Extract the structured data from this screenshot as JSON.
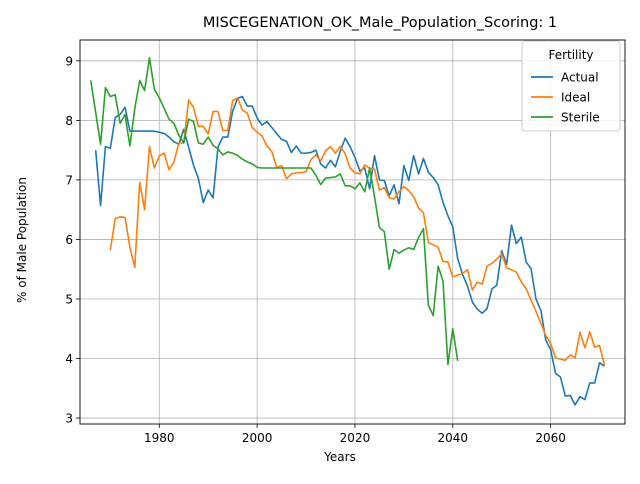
{
  "chart_data": {
    "type": "line",
    "title": "MISCEGENATION_OK_Male_Population_Scoring: 1",
    "xlabel": "Years",
    "ylabel": "% of Male Population",
    "xlim": [
      1963.8,
      2075.2
    ],
    "ylim": [
      2.9,
      9.35
    ],
    "xticks": [
      1980,
      2000,
      2020,
      2040,
      2060
    ],
    "yticks": [
      3,
      4,
      5,
      6,
      7,
      8,
      9
    ],
    "grid": true,
    "legend": {
      "title": "Fertility",
      "placement": "top-right"
    },
    "series": [
      {
        "name": "Actual",
        "color": "#1f77b4",
        "points": [
          [
            1967,
            7.5
          ],
          [
            1968,
            6.57
          ],
          [
            1969,
            7.56
          ],
          [
            1970,
            7.53
          ],
          [
            1971,
            8.05
          ],
          [
            1972,
            8.1
          ],
          [
            1973,
            8.22
          ],
          [
            1974,
            7.82
          ],
          [
            1975,
            7.82
          ],
          [
            1976,
            7.82
          ],
          [
            1977,
            7.82
          ],
          [
            1978,
            7.82
          ],
          [
            1979,
            7.82
          ],
          [
            1980,
            7.8
          ],
          [
            1981,
            7.78
          ],
          [
            1982,
            7.72
          ],
          [
            1983,
            7.64
          ],
          [
            1984,
            7.6
          ],
          [
            1985,
            7.85
          ],
          [
            1986,
            7.55
          ],
          [
            1987,
            7.25
          ],
          [
            1988,
            7.02
          ],
          [
            1989,
            6.62
          ],
          [
            1990,
            6.83
          ],
          [
            1991,
            6.7
          ],
          [
            1992,
            7.55
          ],
          [
            1993,
            7.72
          ],
          [
            1994,
            7.72
          ],
          [
            1995,
            8.15
          ],
          [
            1996,
            8.37
          ],
          [
            1997,
            8.4
          ],
          [
            1998,
            8.24
          ],
          [
            1999,
            8.24
          ],
          [
            2000,
            8.04
          ],
          [
            2001,
            7.92
          ],
          [
            2002,
            7.98
          ],
          [
            2003,
            7.88
          ],
          [
            2004,
            7.78
          ],
          [
            2005,
            7.68
          ],
          [
            2006,
            7.65
          ],
          [
            2007,
            7.46
          ],
          [
            2008,
            7.57
          ],
          [
            2009,
            7.45
          ],
          [
            2010,
            7.45
          ],
          [
            2011,
            7.46
          ],
          [
            2012,
            7.5
          ],
          [
            2013,
            7.27
          ],
          [
            2014,
            7.2
          ],
          [
            2015,
            7.33
          ],
          [
            2016,
            7.22
          ],
          [
            2017,
            7.48
          ],
          [
            2018,
            7.7
          ],
          [
            2019,
            7.56
          ],
          [
            2020,
            7.38
          ],
          [
            2021,
            7.15
          ],
          [
            2022,
            7.2
          ],
          [
            2023,
            6.85
          ],
          [
            2024,
            7.41
          ],
          [
            2025,
            7.0
          ],
          [
            2026,
            6.99
          ],
          [
            2027,
            6.73
          ],
          [
            2028,
            6.92
          ],
          [
            2029,
            6.6
          ],
          [
            2030,
            7.24
          ],
          [
            2031,
            6.99
          ],
          [
            2032,
            7.41
          ],
          [
            2033,
            7.1
          ],
          [
            2034,
            7.36
          ],
          [
            2035,
            7.13
          ],
          [
            2036,
            7.04
          ],
          [
            2037,
            6.92
          ],
          [
            2038,
            6.62
          ],
          [
            2039,
            6.4
          ],
          [
            2040,
            6.21
          ],
          [
            2041,
            5.68
          ],
          [
            2042,
            5.41
          ],
          [
            2043,
            5.22
          ],
          [
            2044,
            4.95
          ],
          [
            2045,
            4.83
          ],
          [
            2046,
            4.76
          ],
          [
            2047,
            4.84
          ],
          [
            2048,
            5.17
          ],
          [
            2049,
            5.23
          ],
          [
            2050,
            5.81
          ],
          [
            2051,
            5.58
          ],
          [
            2052,
            6.24
          ],
          [
            2053,
            5.93
          ],
          [
            2054,
            6.04
          ],
          [
            2055,
            5.62
          ],
          [
            2056,
            5.51
          ],
          [
            2057,
            5.0
          ],
          [
            2058,
            4.81
          ],
          [
            2059,
            4.31
          ],
          [
            2060,
            4.15
          ],
          [
            2061,
            3.75
          ],
          [
            2062,
            3.69
          ],
          [
            2063,
            3.37
          ],
          [
            2064,
            3.38
          ],
          [
            2065,
            3.22
          ],
          [
            2066,
            3.36
          ],
          [
            2067,
            3.31
          ],
          [
            2068,
            3.59
          ],
          [
            2069,
            3.59
          ],
          [
            2070,
            3.93
          ],
          [
            2071,
            3.87
          ]
        ]
      },
      {
        "name": "Ideal",
        "color": "#ff7f0e",
        "points": [
          [
            1970,
            5.82
          ],
          [
            1971,
            6.35
          ],
          [
            1972,
            6.38
          ],
          [
            1973,
            6.37
          ],
          [
            1974,
            5.87
          ],
          [
            1975,
            5.53
          ],
          [
            1976,
            6.96
          ],
          [
            1977,
            6.5
          ],
          [
            1978,
            7.56
          ],
          [
            1979,
            7.2
          ],
          [
            1980,
            7.4
          ],
          [
            1981,
            7.45
          ],
          [
            1982,
            7.17
          ],
          [
            1983,
            7.3
          ],
          [
            1984,
            7.62
          ],
          [
            1985,
            7.62
          ],
          [
            1986,
            8.34
          ],
          [
            1987,
            8.22
          ],
          [
            1988,
            7.9
          ],
          [
            1989,
            7.9
          ],
          [
            1990,
            7.77
          ],
          [
            1991,
            8.15
          ],
          [
            1992,
            8.15
          ],
          [
            1993,
            7.83
          ],
          [
            1994,
            7.83
          ],
          [
            1995,
            8.33
          ],
          [
            1996,
            8.38
          ],
          [
            1997,
            8.17
          ],
          [
            1998,
            8.12
          ],
          [
            1999,
            7.88
          ],
          [
            2000,
            7.8
          ],
          [
            2001,
            7.74
          ],
          [
            2002,
            7.57
          ],
          [
            2003,
            7.48
          ],
          [
            2004,
            7.21
          ],
          [
            2005,
            7.24
          ],
          [
            2006,
            7.02
          ],
          [
            2007,
            7.1
          ],
          [
            2008,
            7.12
          ],
          [
            2009,
            7.12
          ],
          [
            2010,
            7.14
          ],
          [
            2011,
            7.34
          ],
          [
            2012,
            7.42
          ],
          [
            2013,
            7.32
          ],
          [
            2014,
            7.49
          ],
          [
            2015,
            7.56
          ],
          [
            2016,
            7.45
          ],
          [
            2017,
            7.56
          ],
          [
            2018,
            7.44
          ],
          [
            2019,
            7.2
          ],
          [
            2020,
            7.12
          ],
          [
            2021,
            7.1
          ],
          [
            2022,
            7.25
          ],
          [
            2023,
            7.2
          ],
          [
            2024,
            7.18
          ],
          [
            2025,
            6.83
          ],
          [
            2026,
            6.87
          ],
          [
            2027,
            6.7
          ],
          [
            2028,
            6.68
          ],
          [
            2029,
            6.8
          ],
          [
            2030,
            6.89
          ],
          [
            2031,
            6.82
          ],
          [
            2032,
            6.72
          ],
          [
            2033,
            6.53
          ],
          [
            2034,
            6.45
          ],
          [
            2035,
            5.95
          ],
          [
            2036,
            5.91
          ],
          [
            2037,
            5.87
          ],
          [
            2038,
            5.63
          ],
          [
            2039,
            5.62
          ],
          [
            2040,
            5.37
          ],
          [
            2041,
            5.4
          ],
          [
            2042,
            5.43
          ],
          [
            2043,
            5.49
          ],
          [
            2044,
            5.15
          ],
          [
            2045,
            5.28
          ],
          [
            2046,
            5.25
          ],
          [
            2047,
            5.55
          ],
          [
            2048,
            5.6
          ],
          [
            2049,
            5.67
          ],
          [
            2050,
            5.76
          ],
          [
            2051,
            5.52
          ],
          [
            2052,
            5.49
          ],
          [
            2053,
            5.45
          ],
          [
            2054,
            5.29
          ],
          [
            2055,
            5.17
          ],
          [
            2056,
            4.98
          ],
          [
            2057,
            4.79
          ],
          [
            2058,
            4.59
          ],
          [
            2059,
            4.39
          ],
          [
            2060,
            4.25
          ],
          [
            2061,
            4.01
          ],
          [
            2062,
            3.99
          ],
          [
            2063,
            3.97
          ],
          [
            2064,
            4.06
          ],
          [
            2065,
            4.01
          ],
          [
            2066,
            4.44
          ],
          [
            2067,
            4.18
          ],
          [
            2068,
            4.45
          ],
          [
            2069,
            4.19
          ],
          [
            2070,
            4.22
          ],
          [
            2071,
            3.89
          ]
        ]
      },
      {
        "name": "Sterile",
        "color": "#2ca02c",
        "points": [
          [
            1966,
            8.67
          ],
          [
            1968,
            7.6
          ],
          [
            1969,
            8.55
          ],
          [
            1970,
            8.4
          ],
          [
            1971,
            8.43
          ],
          [
            1972,
            7.95
          ],
          [
            1973,
            8.1
          ],
          [
            1974,
            7.57
          ],
          [
            1975,
            8.2
          ],
          [
            1976,
            8.67
          ],
          [
            1977,
            8.5
          ],
          [
            1978,
            9.05
          ],
          [
            1979,
            8.52
          ],
          [
            1980,
            8.38
          ],
          [
            1981,
            8.2
          ],
          [
            1982,
            8.02
          ],
          [
            1983,
            7.95
          ],
          [
            1984,
            7.75
          ],
          [
            1985,
            7.62
          ],
          [
            1986,
            8.02
          ],
          [
            1987,
            7.98
          ],
          [
            1988,
            7.62
          ],
          [
            1989,
            7.6
          ],
          [
            1990,
            7.72
          ],
          [
            1991,
            7.58
          ],
          [
            1992,
            7.52
          ],
          [
            1993,
            7.42
          ],
          [
            1994,
            7.47
          ],
          [
            1995,
            7.45
          ],
          [
            1996,
            7.41
          ],
          [
            1997,
            7.35
          ],
          [
            1998,
            7.3
          ],
          [
            1999,
            7.27
          ],
          [
            2000,
            7.21
          ],
          [
            2001,
            7.2
          ],
          [
            2002,
            7.2
          ],
          [
            2003,
            7.2
          ],
          [
            2004,
            7.2
          ],
          [
            2005,
            7.2
          ],
          [
            2006,
            7.2
          ],
          [
            2007,
            7.2
          ],
          [
            2008,
            7.2
          ],
          [
            2009,
            7.2
          ],
          [
            2010,
            7.2
          ],
          [
            2011,
            7.2
          ],
          [
            2012,
            7.08
          ],
          [
            2013,
            6.92
          ],
          [
            2014,
            7.03
          ],
          [
            2015,
            7.04
          ],
          [
            2016,
            7.05
          ],
          [
            2017,
            7.1
          ],
          [
            2018,
            6.9
          ],
          [
            2019,
            6.9
          ],
          [
            2020,
            6.85
          ],
          [
            2021,
            6.95
          ],
          [
            2022,
            6.8
          ],
          [
            2023,
            7.2
          ],
          [
            2024,
            6.72
          ],
          [
            2025,
            6.2
          ],
          [
            2026,
            6.13
          ],
          [
            2027,
            5.5
          ],
          [
            2028,
            5.83
          ],
          [
            2029,
            5.77
          ],
          [
            2030,
            5.82
          ],
          [
            2031,
            5.86
          ],
          [
            2032,
            5.83
          ],
          [
            2033,
            6.03
          ],
          [
            2034,
            6.18
          ],
          [
            2035,
            4.9
          ],
          [
            2036,
            4.72
          ],
          [
            2037,
            5.55
          ],
          [
            2038,
            5.3
          ],
          [
            2039,
            3.9
          ],
          [
            2040,
            4.5
          ],
          [
            2041,
            3.96
          ]
        ]
      }
    ]
  }
}
